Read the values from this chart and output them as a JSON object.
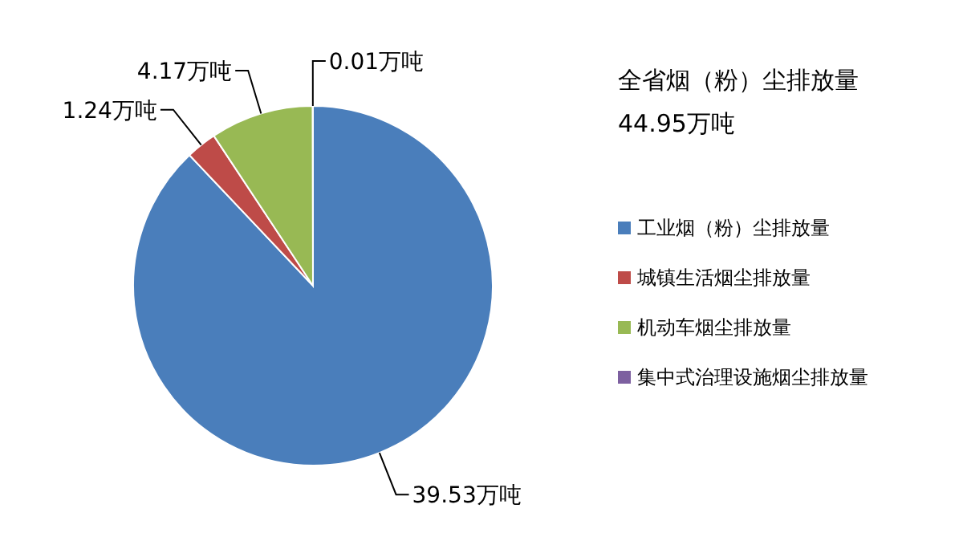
{
  "chart_data": {
    "type": "pie",
    "title": "全省烟（粉）尘排放量",
    "subtitle": "44.95万吨",
    "categories": [
      "工业烟（粉）尘排放量",
      "城镇生活烟尘排放量",
      "机动车烟尘排放量",
      "集中式治理设施烟尘排放量"
    ],
    "values": [
      39.53,
      1.24,
      4.17,
      0.01
    ],
    "colors": [
      "#4a7ebb",
      "#be4b48",
      "#98b954",
      "#7d60a0"
    ],
    "value_labels": [
      "39.53万吨",
      "1.24万吨",
      "4.17万吨",
      "0.01万吨"
    ],
    "legend": "right"
  }
}
